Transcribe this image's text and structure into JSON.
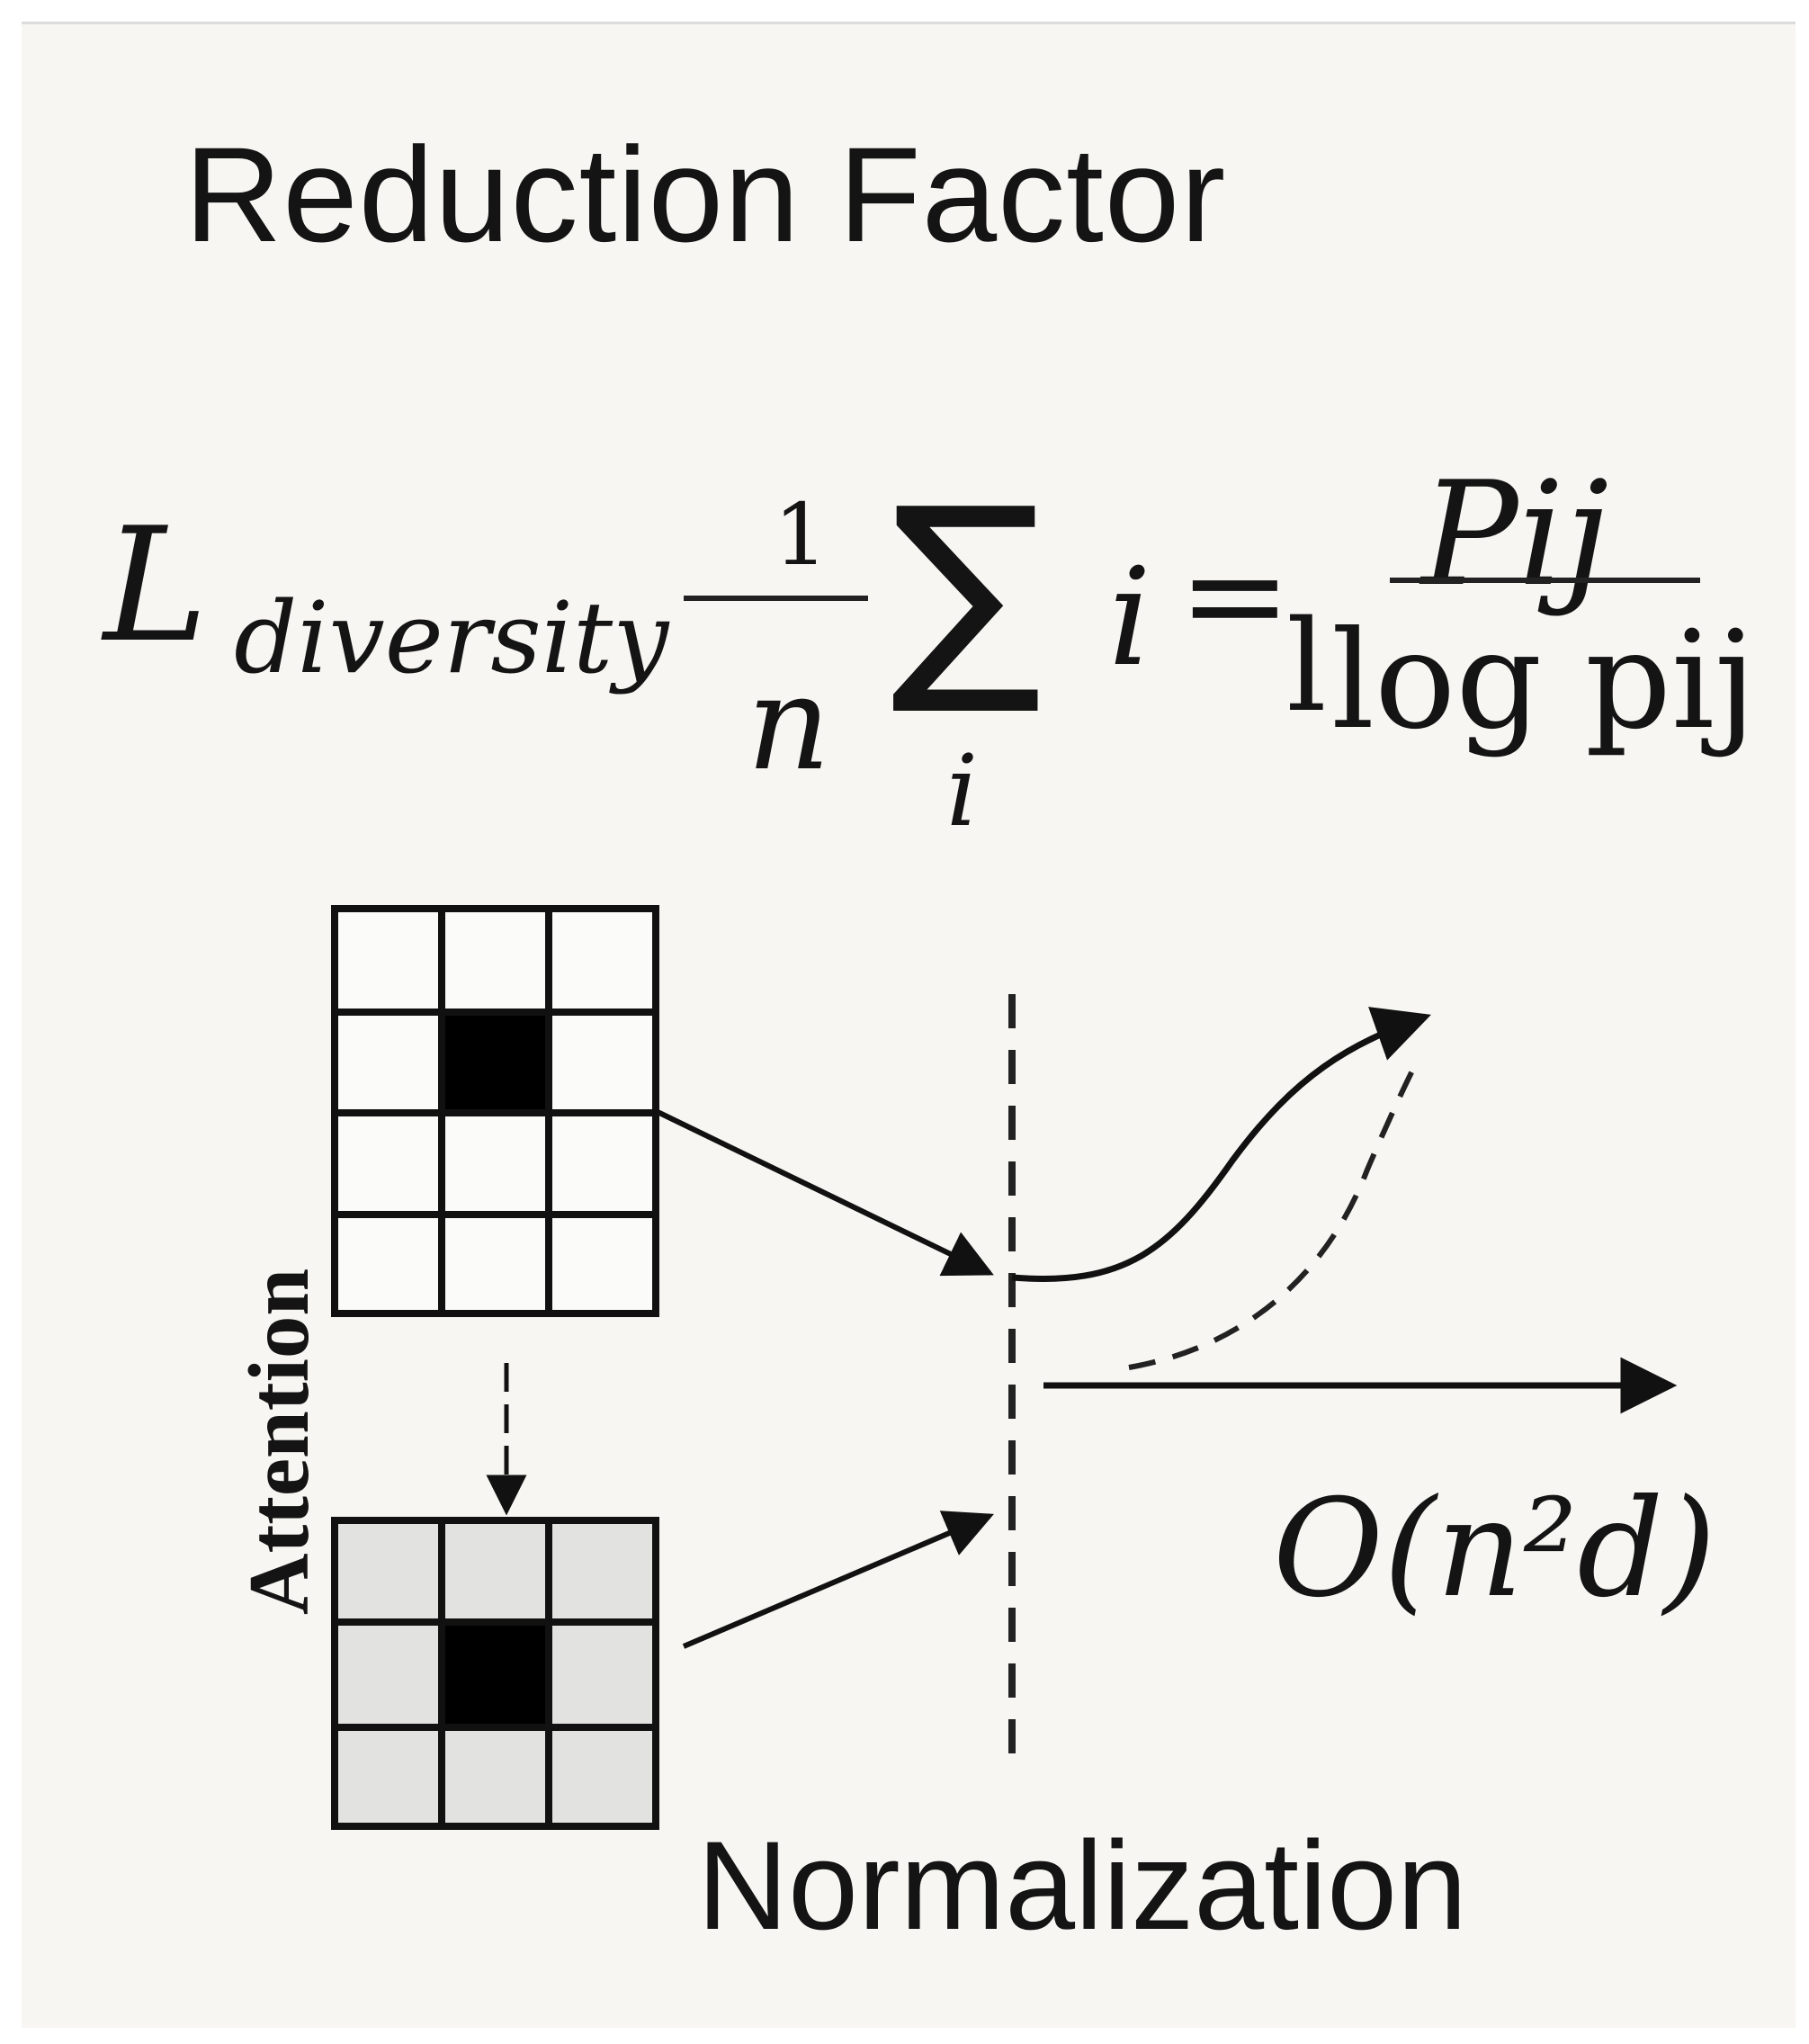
{
  "diagram": {
    "title": "Reduction Factor",
    "equation": {
      "lhs_symbol": "L",
      "lhs_subscript": "diversity",
      "fraction_numerator": "1",
      "fraction_denominator": "n",
      "sum_symbol": "∑",
      "sum_subscript": "i",
      "index": "i",
      "equals": "=",
      "stray_char": "l",
      "rhs_numerator": "Pij",
      "rhs_denominator": "log pij"
    },
    "axis_label_vertical": "Attention",
    "complexity_label": "O(n²d)",
    "bottom_label": "Normalization"
  }
}
